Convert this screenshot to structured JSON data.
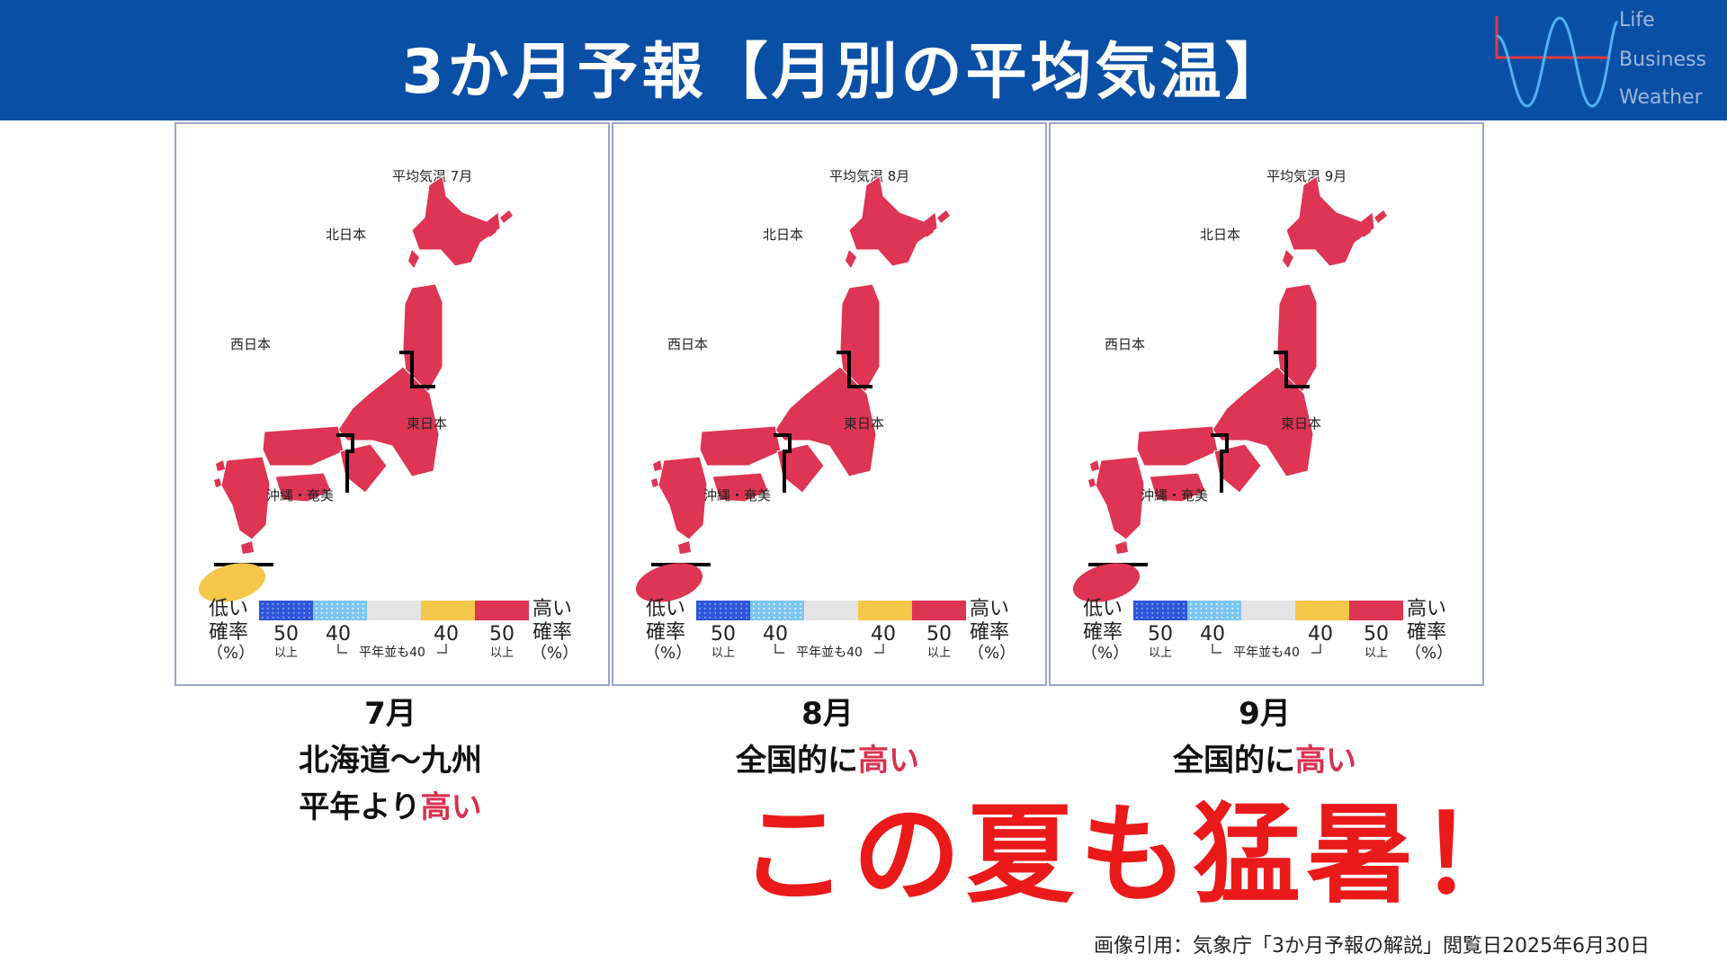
{
  "header": {
    "title": "3か月予報【月別の平均気温】",
    "logo_lines": [
      "Life",
      "Business",
      "Weather"
    ],
    "background_color": "#0a4fa6"
  },
  "colors": {
    "above_normal_red": "#dd3553",
    "okinawa_july_yellow": "#f5c74a",
    "legend": [
      "#2f56d8",
      "#7cc5f4",
      "#e4e4e4",
      "#f5c74a",
      "#dd3553"
    ],
    "highlight_text": "#d9304f",
    "slogan_red": "#ea1a1a"
  },
  "panels": [
    {
      "map_title": "平均気温 7月",
      "regions": {
        "north": "北日本",
        "west": "西日本",
        "east": "東日本",
        "okinawa": "沖縄・奄美"
      },
      "okinawa_category": "above_normal_prob_40",
      "mainland_category": "above_normal_prob_50_plus",
      "caption": {
        "month": "7月",
        "line1": "北海道〜九州",
        "line2_prefix": "平年より",
        "line2_highlight": "高い"
      }
    },
    {
      "map_title": "平均気温 8月",
      "regions": {
        "north": "北日本",
        "west": "西日本",
        "east": "東日本",
        "okinawa": "沖縄・奄美"
      },
      "okinawa_category": "above_normal_prob_50_plus",
      "mainland_category": "above_normal_prob_50_plus",
      "caption": {
        "month": "8月",
        "line1_prefix": "全国的に",
        "line1_highlight": "高い"
      }
    },
    {
      "map_title": "平均気温 9月",
      "regions": {
        "north": "北日本",
        "west": "西日本",
        "east": "東日本",
        "okinawa": "沖縄・奄美"
      },
      "okinawa_category": "above_normal_prob_50_plus",
      "mainland_category": "above_normal_prob_50_plus",
      "caption": {
        "month": "9月",
        "line1_prefix": "全国的に",
        "line1_highlight": "高い"
      }
    }
  ],
  "legend": {
    "low_label_1": "低い",
    "low_label_2": "確率",
    "high_label_1": "高い",
    "high_label_2": "確率",
    "pct": "（%）",
    "nums": [
      "50",
      "40",
      "40",
      "50"
    ],
    "sub_left": "以上",
    "sub_right": "以上",
    "normal_note": "平年並も40"
  },
  "slogan": "この夏も猛暑！",
  "credit": "画像引用：気象庁「3か月予報の解説」閲覧日2025年6月30日"
}
